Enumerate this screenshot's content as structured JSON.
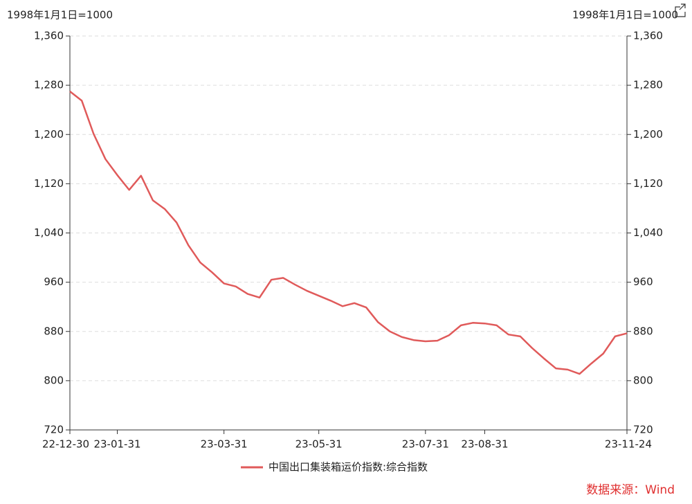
{
  "chart_data": {
    "type": "line",
    "y_unit_label": "1998年1月1日=1000",
    "y2_unit_label": "1998年1月1日=1000",
    "categories": [
      "22-12-30",
      null,
      null,
      null,
      "23-01-31",
      null,
      null,
      null,
      null,
      null,
      null,
      null,
      null,
      "23-03-31",
      null,
      null,
      null,
      null,
      null,
      null,
      null,
      "23-05-31",
      null,
      null,
      null,
      null,
      null,
      null,
      null,
      null,
      "23-07-31",
      null,
      null,
      null,
      null,
      "23-08-31",
      null,
      null,
      null,
      null,
      null,
      null,
      null,
      null,
      null,
      null,
      null,
      "23-11-24"
    ],
    "series": [
      {
        "name": "中国出口集装箱运价指数:综合指数",
        "color": "#e05a5a",
        "values": [
          1270,
          1255,
          1201,
          1160,
          1134,
          1110,
          1133,
          1093,
          1079,
          1057,
          1020,
          992,
          976,
          958,
          953,
          941,
          935,
          964,
          967,
          956,
          946,
          938,
          930,
          921,
          926,
          919,
          895,
          880,
          871,
          866,
          864,
          865,
          874,
          890,
          894,
          893,
          890,
          875,
          872,
          853,
          836,
          820,
          818,
          811,
          828,
          844,
          872,
          877
        ]
      }
    ],
    "ylim": [
      720,
      1360
    ],
    "yticks": [
      720,
      800,
      880,
      960,
      {
        "value": 1040,
        "label": "1,040"
      },
      {
        "value": 1120,
        "label": "1,120"
      },
      {
        "value": 1200,
        "label": "1,200"
      },
      {
        "value": 1280,
        "label": "1,280"
      },
      {
        "value": 1360,
        "label": "1,360"
      }
    ],
    "y2lim": [
      720,
      1360
    ],
    "y2ticks": [
      720,
      800,
      880,
      960,
      {
        "value": 1040,
        "label": "1,040"
      },
      {
        "value": 1120,
        "label": "1,120"
      },
      {
        "value": 1200,
        "label": "1,200"
      },
      {
        "value": 1280,
        "label": "1,280"
      },
      {
        "value": 1360,
        "label": "1,360"
      }
    ],
    "grid": true,
    "legend": "bottom",
    "source": "数据来源：Wind"
  }
}
